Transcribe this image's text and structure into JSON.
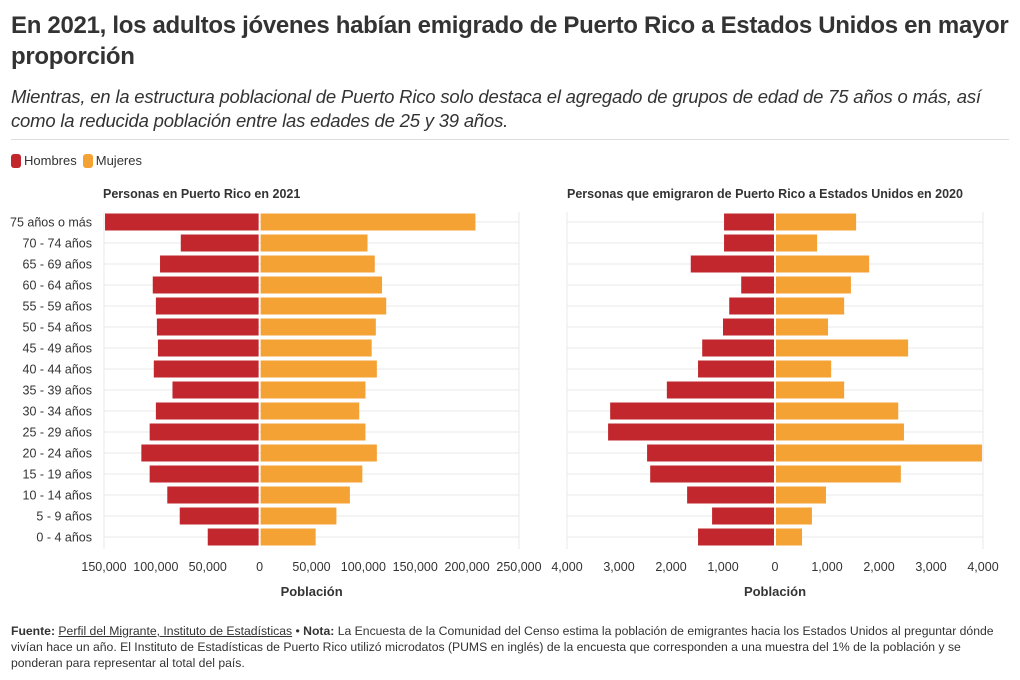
{
  "header": {
    "title": "En 2021, los adultos jóvenes habían emigrado de Puerto Rico a Estados Unidos en mayor proporción",
    "subtitle": "Mientras, en la estructura poblacional de Puerto Rico solo destaca el agregado de grupos de edad de 75 años o más, así como la reducida población entre las edades de 25 y 39 años."
  },
  "legend": [
    {
      "label": "Hombres",
      "color": "#c1272d"
    },
    {
      "label": "Mujeres",
      "color": "#f4a234"
    }
  ],
  "colors": {
    "male": "#c1272d",
    "female": "#f4a234",
    "grid": "#e9e9e9",
    "text": "#333333"
  },
  "chart_data": [
    {
      "type": "bar",
      "orientation": "horizontal-population-pyramid",
      "title": "Personas en Puerto Rico en 2021",
      "xlabel": "Población",
      "ylabel": "",
      "xlim": [
        -150000,
        250000
      ],
      "xticks": [
        -150000,
        -100000,
        -50000,
        0,
        50000,
        100000,
        150000,
        200000,
        250000
      ],
      "xtick_labels": [
        "150,000",
        "100,000",
        "50,000",
        "0",
        "50,000",
        "100,000",
        "150,000",
        "200,000",
        "250,000"
      ],
      "grid": true,
      "categories": [
        "75 años o más",
        "70 - 74 años",
        "65 - 69 años",
        "60 - 64 años",
        "55 - 59 años",
        "50 - 54 años",
        "45 - 49 años",
        "40 - 44 años",
        "35 - 39 años",
        "30 - 34 años",
        "25 - 29 años",
        "20 - 24 años",
        "15 - 19 años",
        "10 - 14 años",
        "5 - 9 años",
        "0 - 4 años"
      ],
      "series": [
        {
          "name": "Hombres",
          "values": [
            149000,
            76000,
            96000,
            103000,
            100000,
            99000,
            98000,
            102000,
            84000,
            100000,
            106000,
            114000,
            106000,
            89000,
            77000,
            50000
          ]
        },
        {
          "name": "Mujeres",
          "values": [
            208000,
            104000,
            111000,
            118000,
            122000,
            112000,
            108000,
            113000,
            102000,
            96000,
            102000,
            113000,
            99000,
            87000,
            74000,
            54000
          ]
        }
      ]
    },
    {
      "type": "bar",
      "orientation": "horizontal-population-pyramid",
      "title": "Personas que emigraron de Puerto Rico a Estados Unidos en 2020",
      "xlabel": "Población",
      "ylabel": "",
      "xlim": [
        -4000,
        4000
      ],
      "xticks": [
        -4000,
        -3000,
        -2000,
        -1000,
        0,
        1000,
        2000,
        3000,
        4000
      ],
      "xtick_labels": [
        "4,000",
        "3,000",
        "2,000",
        "1,000",
        "0",
        "1,000",
        "2,000",
        "3,000",
        "4,000"
      ],
      "grid": true,
      "categories": [
        "75 años o más",
        "70 - 74 años",
        "65 - 69 años",
        "60 - 64 años",
        "55 - 59 años",
        "50 - 54 años",
        "45 - 49 años",
        "40 - 44 años",
        "35 - 39 años",
        "30 - 34 años",
        "25 - 29 años",
        "20 - 24 años",
        "15 - 19 años",
        "10 - 14 años",
        "5 - 9 años",
        "0 - 4 años"
      ],
      "series": [
        {
          "name": "Hombres",
          "values": [
            980,
            980,
            1620,
            650,
            880,
            1000,
            1400,
            1480,
            2080,
            3170,
            3210,
            2460,
            2400,
            1690,
            1210,
            1480
          ]
        },
        {
          "name": "Mujeres",
          "values": [
            1560,
            810,
            1810,
            1460,
            1330,
            1020,
            2560,
            1080,
            1330,
            2370,
            2480,
            3980,
            2420,
            980,
            710,
            520
          ]
        }
      ]
    }
  ],
  "footer": {
    "source_label": "Fuente:",
    "source_link": "Perfil del Migrante, Instituto de Estadísticas",
    "separator": " • ",
    "note_label": "Nota:",
    "note_text": " La Encuesta de la Comunidad del Censo estima la población de emigrantes hacia los Estados Unidos al preguntar dónde vivían hace un año. El Instituto de Estadísticas de Puerto Rico utilizó microdatos (PUMS en inglés) de la encuesta que corresponden a una muestra del 1% de la población y se ponderan para representar al total del país."
  }
}
